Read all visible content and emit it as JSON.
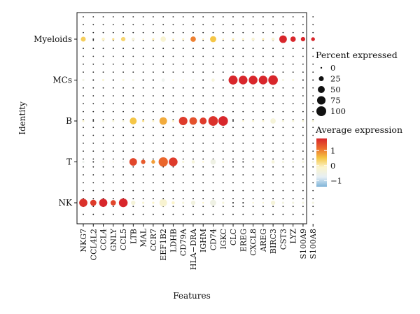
{
  "chart_data": {
    "type": "dotplot",
    "title": "",
    "xlabel": "Features",
    "ylabel": "Identity",
    "features": [
      "NKG7",
      "CCL4L2",
      "CCL4",
      "GNLY",
      "CCL5",
      "LTB",
      "MAL",
      "CCR7",
      "EEF1B2",
      "LDHB",
      "CD79A",
      "HLA−DRA",
      "IGHM",
      "CD74",
      "IGKC",
      "CLC",
      "EREG",
      "CXCL8",
      "AREG",
      "BIRC3",
      "CST3",
      "LYZ",
      "S100A9",
      "S100A8"
    ],
    "identities": [
      "Myeloids",
      "MCs",
      "B",
      "T",
      "NK"
    ],
    "percent_expressed": [
      [
        25,
        0,
        10,
        5,
        20,
        10,
        2,
        5,
        30,
        3,
        5,
        30,
        2,
        40,
        2,
        5,
        5,
        10,
        5,
        10,
        60,
        30,
        20,
        15
      ],
      [
        5,
        0,
        5,
        0,
        5,
        5,
        0,
        0,
        10,
        2,
        2,
        5,
        0,
        10,
        0,
        85,
        80,
        80,
        80,
        95,
        5,
        5,
        0,
        0
      ],
      [
        5,
        0,
        5,
        5,
        5,
        50,
        5,
        5,
        60,
        5,
        75,
        60,
        50,
        95,
        95,
        0,
        2,
        5,
        5,
        30,
        5,
        5,
        5,
        5
      ],
      [
        5,
        0,
        5,
        2,
        5,
        60,
        20,
        15,
        90,
        80,
        5,
        10,
        2,
        30,
        5,
        0,
        0,
        2,
        2,
        10,
        5,
        5,
        5,
        5
      ],
      [
        70,
        40,
        70,
        30,
        80,
        20,
        5,
        5,
        60,
        10,
        5,
        20,
        2,
        40,
        5,
        0,
        0,
        2,
        2,
        20,
        5,
        5,
        5,
        5
      ]
    ],
    "avg_expression": [
      [
        0.4,
        0,
        -0.1,
        0.2,
        0.3,
        -0.3,
        -0.1,
        0,
        -0.2,
        0,
        -0.1,
        1.0,
        0,
        0.5,
        0,
        0,
        -0.1,
        -0.2,
        0,
        -0.2,
        1.8,
        1.8,
        1.8,
        1.8
      ],
      [
        -0.5,
        0,
        -0.2,
        0,
        -0.3,
        -0.4,
        0,
        0,
        -0.6,
        -0.1,
        -0.2,
        -0.5,
        0,
        -0.3,
        0,
        1.8,
        1.8,
        1.8,
        1.8,
        1.8,
        -0.4,
        -0.3,
        0,
        0
      ],
      [
        -0.2,
        0,
        -0.3,
        -0.3,
        -0.3,
        0.5,
        0.2,
        -0.1,
        0.7,
        -0.1,
        1.6,
        1.4,
        1.6,
        1.7,
        1.8,
        0,
        -0.1,
        -0.2,
        -0.2,
        -0.3,
        -0.3,
        -0.3,
        -0.3,
        -0.3
      ],
      [
        -0.6,
        0,
        -0.5,
        -0.4,
        -0.6,
        1.5,
        1.3,
        0.8,
        1.2,
        1.6,
        -0.3,
        -0.3,
        -0.1,
        -0.5,
        -0.3,
        0,
        0,
        -0.2,
        -0.2,
        -0.3,
        -0.4,
        -0.4,
        -0.4,
        -0.4
      ],
      [
        1.7,
        1.6,
        1.8,
        1.5,
        1.8,
        -0.3,
        -0.2,
        -0.1,
        -0.2,
        -0.1,
        -0.3,
        -0.4,
        -0.1,
        -0.5,
        -0.3,
        0,
        0,
        -0.2,
        -0.2,
        -0.3,
        -0.4,
        -0.4,
        -0.4,
        -0.4
      ]
    ],
    "size_legend": {
      "title": "Percent expressed",
      "values": [
        0,
        25,
        50,
        75,
        100
      ],
      "labels": [
        "0",
        "25",
        "50",
        "75",
        "100"
      ]
    },
    "color_legend": {
      "title": "Average expression",
      "ticks": [
        1,
        0,
        -1
      ],
      "labels": [
        "1",
        "0",
        "−1"
      ],
      "range": [
        -1.4,
        1.8
      ],
      "colors": [
        "#7fb4d8",
        "#e6eff5",
        "#fbf4cc",
        "#f5c542",
        "#eb6a2c",
        "#d8262b"
      ]
    },
    "grid": "dotted",
    "legend_placement": "right"
  }
}
